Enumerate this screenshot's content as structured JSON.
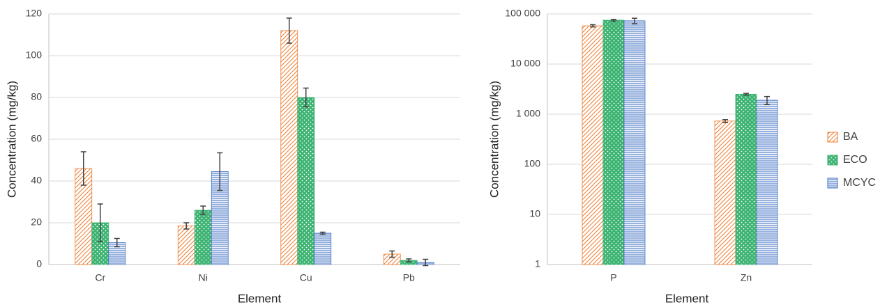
{
  "chart_data": [
    {
      "type": "bar",
      "x_label": "Element",
      "y_label": "Concentration (mg/kg)",
      "categories": [
        "Cr",
        "Ni",
        "Cu",
        "Pb"
      ],
      "series": [
        {
          "color": "#ed7d31",
          "pattern": "hatch",
          "values": [
            46,
            18.5,
            112,
            5
          ],
          "errors": [
            8,
            1.5,
            6,
            1.5
          ]
        },
        {
          "color": "#3cb371",
          "pattern": "dots",
          "values": [
            20,
            26,
            80,
            2
          ],
          "errors": [
            9,
            2,
            4.5,
            0.7
          ]
        },
        {
          "color": "#4472c4",
          "pattern": "lines",
          "values": [
            10.5,
            44.5,
            15,
            1
          ],
          "errors": [
            2,
            9,
            0.5,
            1.5
          ]
        }
      ],
      "ylim": [
        0,
        120
      ],
      "yticks": [
        0,
        20,
        40,
        60,
        80,
        100,
        120
      ],
      "grid": true
    },
    {
      "type": "bar",
      "x_label": "Element",
      "y_label": "Concentration (mg/kg)",
      "categories": [
        "P",
        "Zn"
      ],
      "series": [
        {
          "name": "BA",
          "color": "#ed7d31",
          "pattern": "hatch",
          "values": [
            58000,
            730
          ],
          "errors": [
            3000,
            50
          ]
        },
        {
          "name": "ECO",
          "color": "#3cb371",
          "pattern": "dots",
          "values": [
            75000,
            2500
          ],
          "errors": [
            3000,
            100
          ]
        },
        {
          "name": "MCYC",
          "color": "#4472c4",
          "pattern": "lines",
          "values": [
            73000,
            1900
          ],
          "errors": [
            9000,
            350
          ]
        }
      ],
      "ylim": [
        1,
        100000
      ],
      "log_scale": true,
      "yticks": [
        1,
        10,
        100,
        {
          "value": 1000,
          "label": "1 000"
        },
        {
          "value": 10000,
          "label": "10 000"
        },
        {
          "value": 100000,
          "label": "100 000"
        }
      ],
      "grid": true,
      "legend": "right"
    }
  ]
}
